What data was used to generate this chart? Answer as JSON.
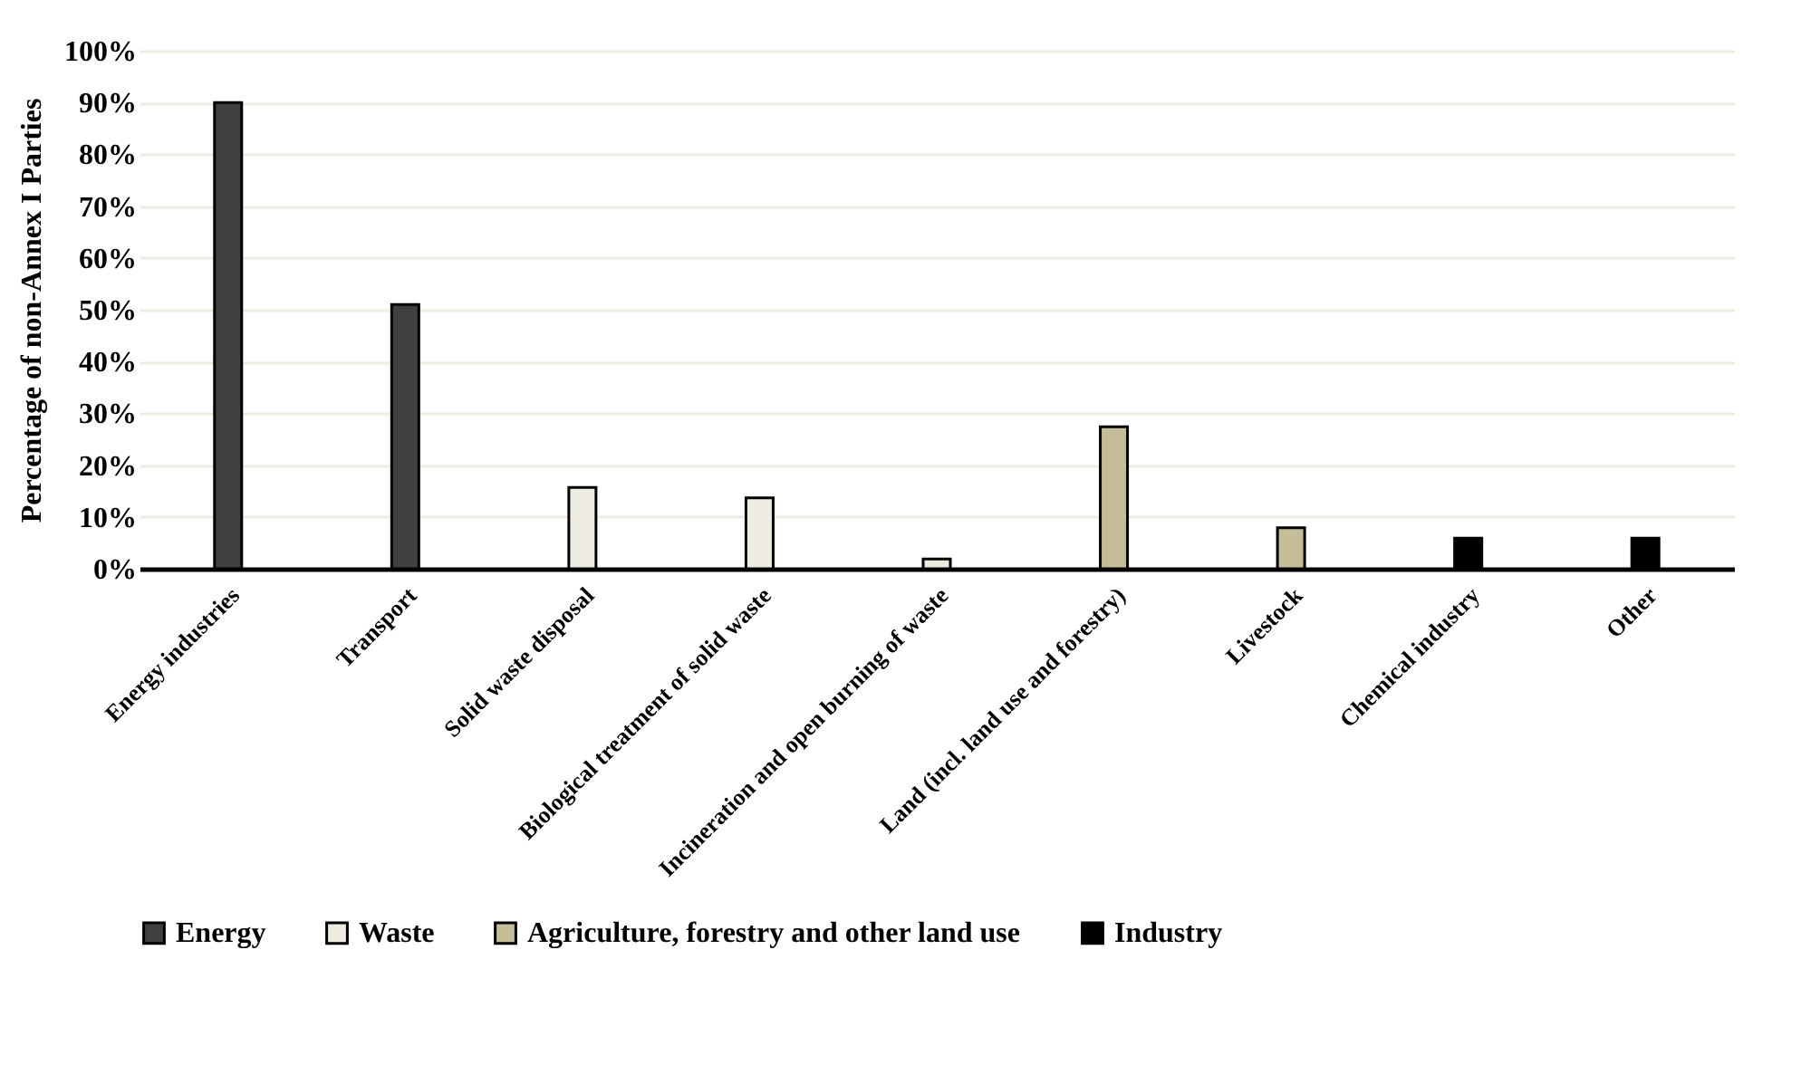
{
  "chart_data": {
    "type": "bar",
    "ylabel": "Percentage of non-Annex I Parties",
    "categories": [
      "Energy industries",
      "Transport",
      "Solid waste disposal",
      "Biological treatment of solid waste",
      "Incineration and open burning of waste",
      "Land (incl. land use and forestry)",
      "Livestock",
      "Chemical industry",
      "Other"
    ],
    "series": [
      {
        "name": "Energy",
        "color": "#404040",
        "values": [
          90,
          51,
          null,
          null,
          null,
          null,
          null,
          null,
          null
        ]
      },
      {
        "name": "Waste",
        "color": "#eeece1",
        "values": [
          null,
          null,
          15.7,
          13.7,
          1.9,
          null,
          null,
          null,
          null
        ]
      },
      {
        "name": "Agriculture, forestry and other land use",
        "color": "#c4bd97",
        "values": [
          null,
          null,
          null,
          null,
          null,
          27.4,
          7.9,
          null,
          null
        ]
      },
      {
        "name": "Industry",
        "color": "#000000",
        "values": [
          null,
          null,
          null,
          null,
          null,
          null,
          null,
          5.9,
          5.9
        ]
      }
    ],
    "ylim": [
      0,
      100
    ],
    "yticks": [
      {
        "value": 0,
        "label": "0%"
      },
      {
        "value": 10,
        "label": "10%"
      },
      {
        "value": 20,
        "label": "20%"
      },
      {
        "value": 30,
        "label": "30%"
      },
      {
        "value": 40,
        "label": "40%"
      },
      {
        "value": 50,
        "label": "50%"
      },
      {
        "value": 60,
        "label": "60%"
      },
      {
        "value": 70,
        "label": "70%"
      },
      {
        "value": 80,
        "label": "80%"
      },
      {
        "value": 90,
        "label": "90%"
      },
      {
        "value": 100,
        "label": "100%"
      }
    ],
    "grid": "y",
    "legend": "bottom"
  }
}
